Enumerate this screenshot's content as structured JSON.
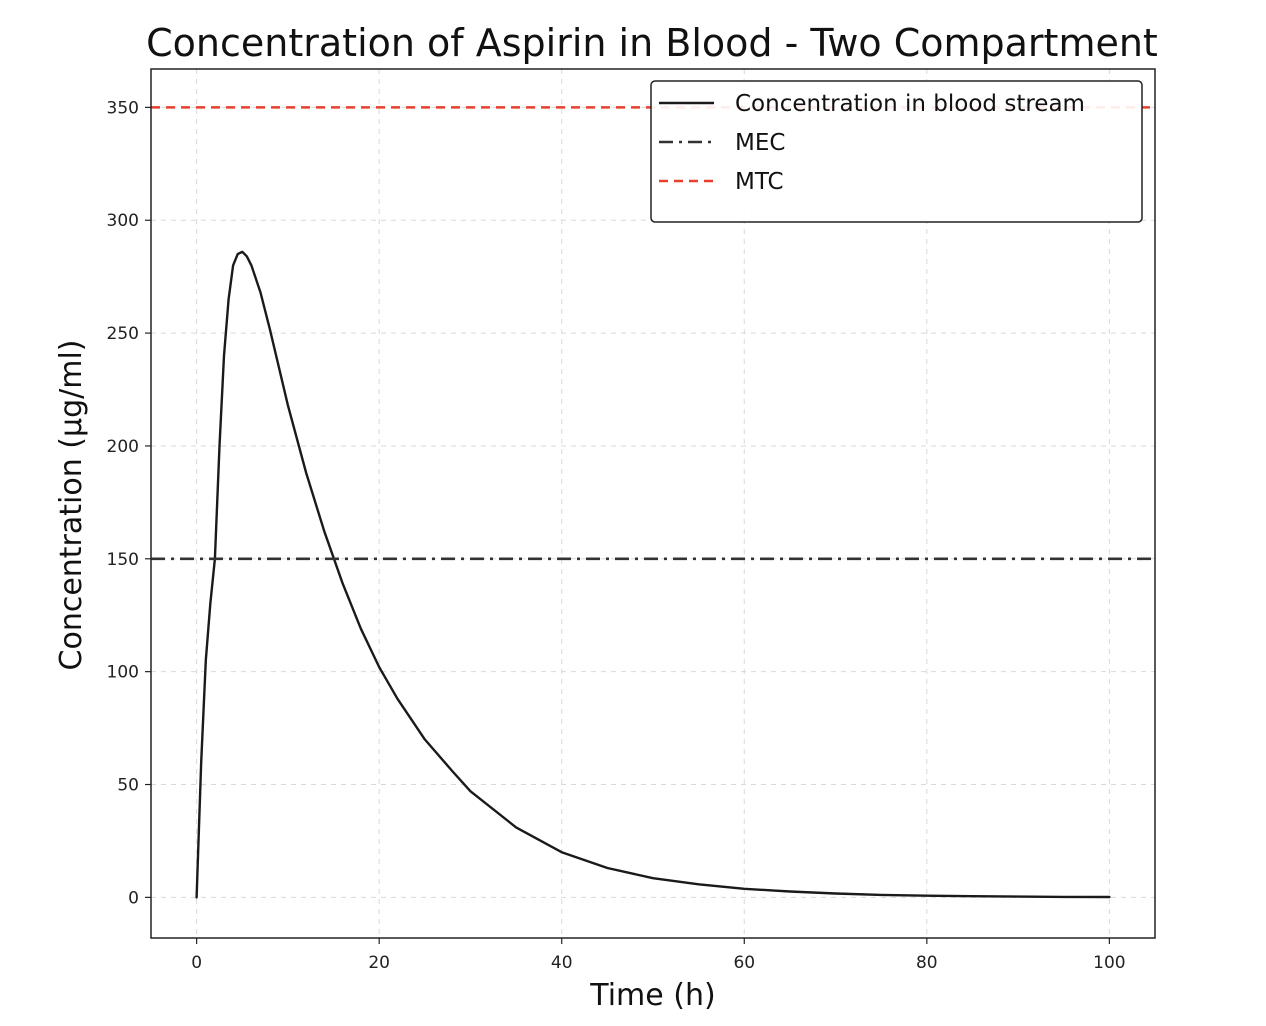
{
  "chart_data": {
    "type": "line",
    "title": "Concentration of Aspirin in Blood - Two Compartment",
    "xlabel": "Time (h)",
    "ylabel": "Concentration (µg/ml)",
    "xlim": [
      -5,
      105
    ],
    "ylim": [
      -18,
      367
    ],
    "xticks": [
      0,
      20,
      40,
      60,
      80,
      100
    ],
    "yticks": [
      0,
      50,
      100,
      150,
      200,
      250,
      300,
      350
    ],
    "grid": true,
    "legend_position": "top-right",
    "series": [
      {
        "name": "Concentration in blood stream",
        "color": "#1a1a1a",
        "style": "solid",
        "x": [
          0,
          0.5,
          1,
          1.5,
          2,
          2.5,
          3,
          3.5,
          4,
          4.5,
          5,
          5.5,
          6,
          7,
          8,
          9,
          10,
          12,
          14,
          16,
          18,
          20,
          22,
          25,
          28,
          30,
          35,
          40,
          45,
          50,
          55,
          60,
          65,
          70,
          75,
          80,
          85,
          90,
          95,
          100
        ],
        "y": [
          0,
          60,
          105,
          130,
          150,
          200,
          240,
          265,
          280,
          285,
          286,
          284,
          280,
          268,
          252,
          235,
          218,
          188,
          162,
          139,
          119,
          102,
          88,
          70,
          56,
          47,
          31,
          20,
          13,
          8.5,
          5.8,
          3.8,
          2.6,
          1.7,
          1.1,
          0.75,
          0.5,
          0.33,
          0.22,
          0.15
        ]
      },
      {
        "name": "MEC",
        "color": "#333333",
        "style": "dashdot",
        "constant": 150
      },
      {
        "name": "MTC",
        "color": "#e8402e",
        "style": "dashed",
        "constant": 350
      }
    ]
  }
}
